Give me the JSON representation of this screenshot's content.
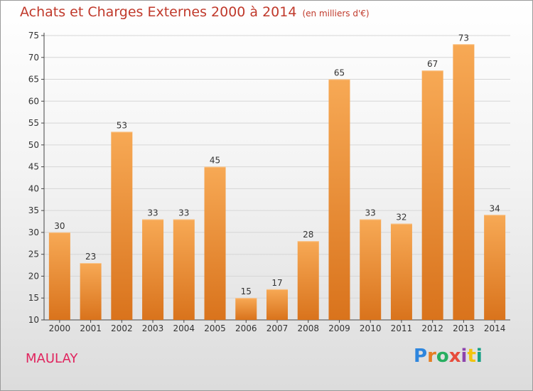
{
  "header": {
    "title": "Achats et Charges Externes 2000 à 2014",
    "unit": "(en milliers d'€)"
  },
  "footer": {
    "place": "MAULAY",
    "brand_letters": [
      "P",
      "r",
      "o",
      "x",
      "i",
      "t",
      "i"
    ],
    "brand_colors": [
      "#2e86de",
      "#e67e22",
      "#27ae60",
      "#e74c3c",
      "#8e44ad",
      "#f1c40f",
      "#16a085"
    ]
  },
  "chart_data": {
    "type": "bar",
    "title": "Achats et Charges Externes 2000 à 2014",
    "categories": [
      "2000",
      "2001",
      "2002",
      "2003",
      "2004",
      "2005",
      "2006",
      "2007",
      "2008",
      "2009",
      "2010",
      "2011",
      "2012",
      "2013",
      "2014"
    ],
    "values": [
      30,
      23,
      53,
      33,
      33,
      45,
      15,
      17,
      28,
      65,
      33,
      32,
      67,
      73,
      34
    ],
    "ylim": [
      10,
      75
    ],
    "yticks": [
      10,
      15,
      20,
      25,
      30,
      35,
      40,
      45,
      50,
      55,
      60,
      65,
      70,
      75
    ],
    "grid": true,
    "bar_color_top": "#f7a955",
    "bar_color_bottom": "#d9731c"
  }
}
